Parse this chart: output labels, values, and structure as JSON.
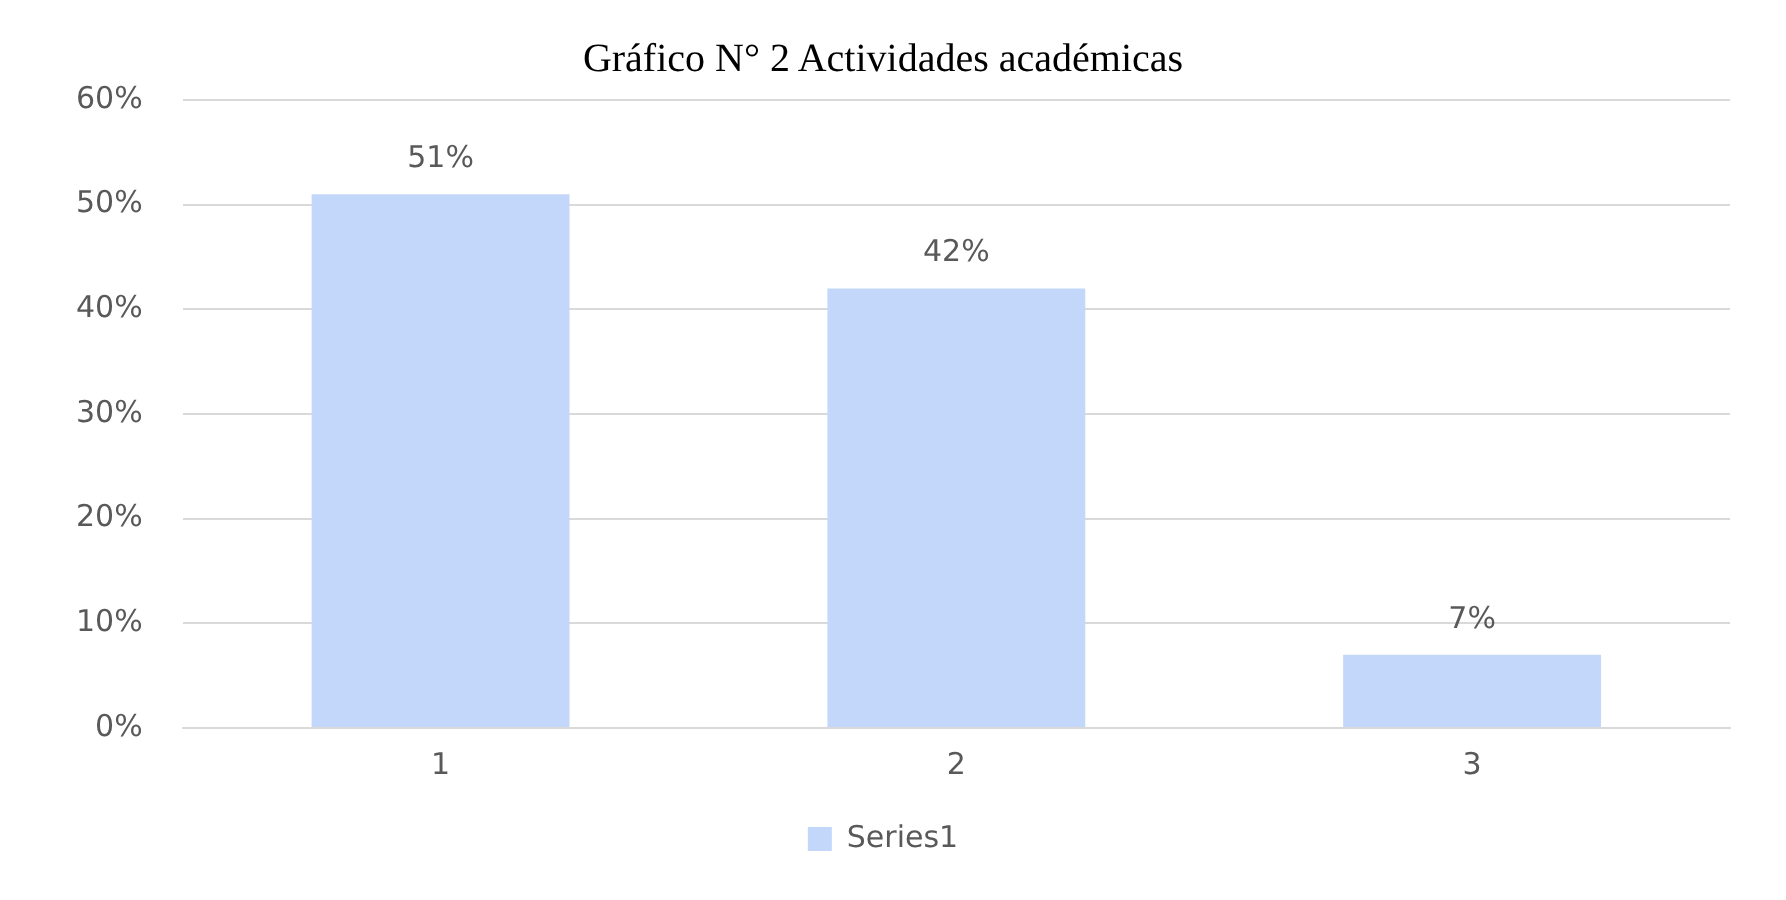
{
  "chart_data": {
    "type": "bar",
    "title": "Gráfico N° 2 Actividades académicas",
    "categories": [
      "1",
      "2",
      "3"
    ],
    "series": [
      {
        "name": "Series1",
        "color": "#c2d7fa",
        "values": [
          51,
          42,
          7
        ],
        "value_labels": [
          "51%",
          "42%",
          "7%"
        ]
      }
    ],
    "ylim": [
      0,
      60
    ],
    "yticks": [
      {
        "value": 0,
        "label": "0%"
      },
      {
        "value": 10,
        "label": "10%"
      },
      {
        "value": 20,
        "label": "20%"
      },
      {
        "value": 30,
        "label": "30%"
      },
      {
        "value": 40,
        "label": "40%"
      },
      {
        "value": 50,
        "label": "50%"
      },
      {
        "value": 60,
        "label": "60%"
      }
    ],
    "grid": "y",
    "legend": "bottom"
  }
}
